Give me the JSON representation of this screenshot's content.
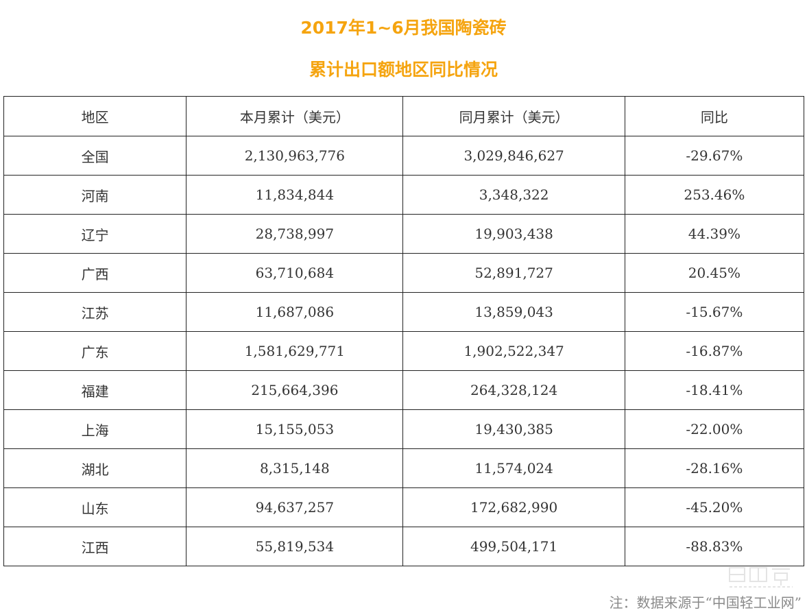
{
  "title": {
    "line1": "2017年1~6月我国陶瓷砖",
    "line2": "累计出口额地区同比情况"
  },
  "table": {
    "headers": [
      "地区",
      "本月累计（美元）",
      "同月累计（美元）",
      "同比"
    ],
    "rows": [
      [
        "全国",
        "2,130,963,776",
        "3,029,846,627",
        "-29.67%"
      ],
      [
        "河南",
        "11,834,844",
        "3,348,322",
        "253.46%"
      ],
      [
        "辽宁",
        "28,738,997",
        "19,903,438",
        "44.39%"
      ],
      [
        "广西",
        "63,710,684",
        "52,891,727",
        "20.45%"
      ],
      [
        "江苏",
        "11,687,086",
        "13,859,043",
        "-15.67%"
      ],
      [
        "广东",
        "1,581,629,771",
        "1,902,522,347",
        "-16.87%"
      ],
      [
        "福建",
        "215,664,396",
        "264,328,124",
        "-18.41%"
      ],
      [
        "上海",
        "15,155,053",
        "19,430,385",
        "-22.00%"
      ],
      [
        "湖北",
        "8,315,148",
        "11,574,024",
        "-28.16%"
      ],
      [
        "山东",
        "94,637,257",
        "172,682,990",
        "-45.20%"
      ],
      [
        "江西",
        "55,819,534",
        "499,504,171",
        "-88.83%"
      ]
    ]
  },
  "note": "注：数据来源于“中国轻工业网”",
  "colors": {
    "title": "#f5a40f",
    "text": "#333333",
    "border": "#222222",
    "note": "#8a8a8a"
  }
}
